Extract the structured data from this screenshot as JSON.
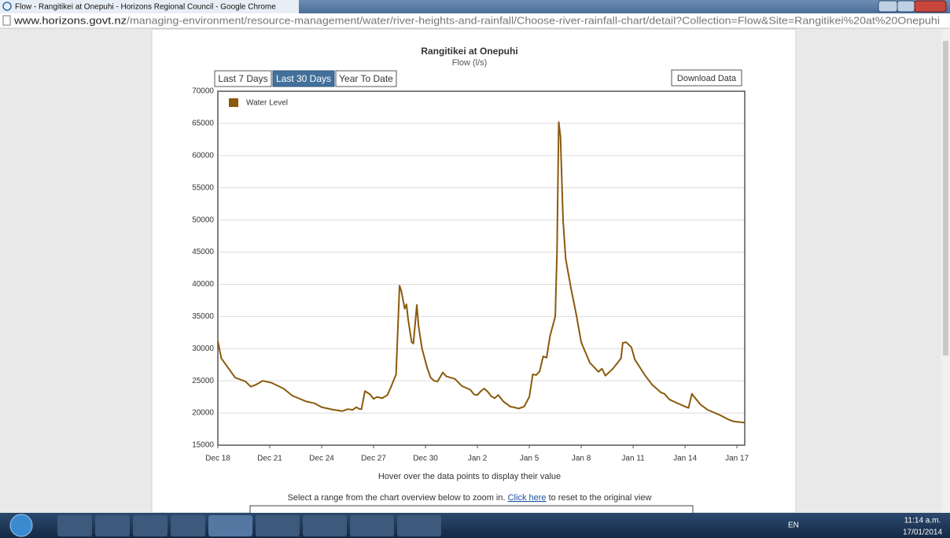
{
  "window": {
    "title": "Flow - Rangitikei at Onepuhi - Horizons Regional Council - Google Chrome"
  },
  "address_bar": {
    "host": "www.horizons.govt.nz",
    "path": "/managing-environment/resource-management/water/river-heights-and-rainfall/Choose-river-rainfall-chart/detail?Collection=Flow&Site=Rangitikei%20at%20Onepuhi"
  },
  "chart_data": {
    "type": "line",
    "title": "Rangitikei at Onepuhi",
    "subtitle": "Flow (l/s)",
    "range_buttons": [
      "Last 7 Days",
      "Last 30 Days",
      "Year To Date"
    ],
    "active_button": 1,
    "download_button": "Download Data",
    "legend": "top-left",
    "grid": true,
    "x": [
      0,
      0.2,
      0.6,
      1.0,
      1.6,
      1.9,
      2.2,
      2.6,
      3.1,
      3.8,
      4.3,
      5.1,
      5.6,
      6.0,
      6.7,
      7.2,
      7.5,
      7.8,
      8.0,
      8.2,
      8.3,
      8.5,
      8.8,
      9.0,
      9.2,
      9.5,
      9.8,
      10.0,
      10.3,
      10.5,
      10.6,
      10.8,
      10.9,
      11.0,
      11.2,
      11.3,
      11.5,
      11.6,
      11.8,
      12.1,
      12.3,
      12.5,
      12.7,
      13.0,
      13.2,
      13.7,
      14.1,
      14.6,
      14.8,
      15.0,
      15.2,
      15.4,
      15.6,
      15.8,
      16.0,
      16.2,
      16.5,
      16.9,
      17.4,
      17.7,
      18.0,
      18.2,
      18.4,
      18.6,
      18.8,
      19.0,
      19.2,
      19.5,
      19.6,
      19.7,
      19.8,
      19.95,
      20.1,
      20.4,
      20.7,
      21.0,
      21.5,
      22.0,
      22.2,
      22.4,
      22.8,
      23.1,
      23.3,
      23.4,
      23.6,
      23.9,
      24.1,
      24.7,
      25.1,
      25.6,
      25.8,
      26.1,
      26.5,
      27.0,
      27.2,
      27.4,
      27.5,
      27.9,
      28.3,
      29.0,
      29.5,
      29.8,
      30.1,
      30.45
    ],
    "series": [
      {
        "name": "Water Level",
        "color": "#8b5a0c",
        "values": [
          31200,
          28500,
          27000,
          25500,
          24900,
          24100,
          24400,
          25000,
          24700,
          23800,
          22700,
          21800,
          21500,
          20900,
          20500,
          20300,
          20600,
          20500,
          20900,
          20600,
          20600,
          23400,
          22900,
          22200,
          22500,
          22300,
          22800,
          24000,
          26000,
          39800,
          39000,
          36200,
          36900,
          34500,
          31000,
          30800,
          36800,
          33500,
          30000,
          27000,
          25500,
          25000,
          24900,
          26300,
          25700,
          25300,
          24200,
          23600,
          22900,
          22800,
          23400,
          23800,
          23300,
          22600,
          22300,
          22800,
          21800,
          21000,
          20700,
          21000,
          22500,
          26000,
          25900,
          26500,
          28800,
          28600,
          32000,
          35000,
          45000,
          65200,
          63000,
          50000,
          44000,
          39500,
          35500,
          31000,
          27800,
          26400,
          26900,
          25800,
          26800,
          27800,
          28500,
          30900,
          31000,
          30200,
          28300,
          25800,
          24400,
          23200,
          23000,
          22100,
          21600,
          21000,
          20800,
          23000,
          22600,
          21300,
          20500,
          19700,
          19000,
          18700,
          18600,
          18500
        ]
      }
    ],
    "xlim": [
      0,
      30.45
    ],
    "xticks": [
      {
        "value": 0,
        "label": "Dec 18"
      },
      {
        "value": 3,
        "label": "Dec 21"
      },
      {
        "value": 6,
        "label": "Dec 24"
      },
      {
        "value": 9,
        "label": "Dec 27"
      },
      {
        "value": 12,
        "label": "Dec 30"
      },
      {
        "value": 15,
        "label": "Jan 2"
      },
      {
        "value": 18,
        "label": "Jan 5"
      },
      {
        "value": 21,
        "label": "Jan 8"
      },
      {
        "value": 24,
        "label": "Jan 11"
      },
      {
        "value": 27,
        "label": "Jan 14"
      },
      {
        "value": 30,
        "label": "Jan 17"
      }
    ],
    "ylim": [
      15000,
      70000
    ],
    "yticks": [
      15000,
      20000,
      25000,
      30000,
      35000,
      40000,
      45000,
      50000,
      55000,
      60000,
      65000,
      70000
    ],
    "footnote": "Hover over the data points to display their value",
    "zoom_hint": {
      "before": "Select a range from the chart overview below to zoom in. ",
      "link": "Click here",
      "after": " to reset to the original view"
    }
  },
  "taskbar": {
    "language": "EN",
    "time": "11:14 a.m.",
    "date": "17/01/2014"
  }
}
